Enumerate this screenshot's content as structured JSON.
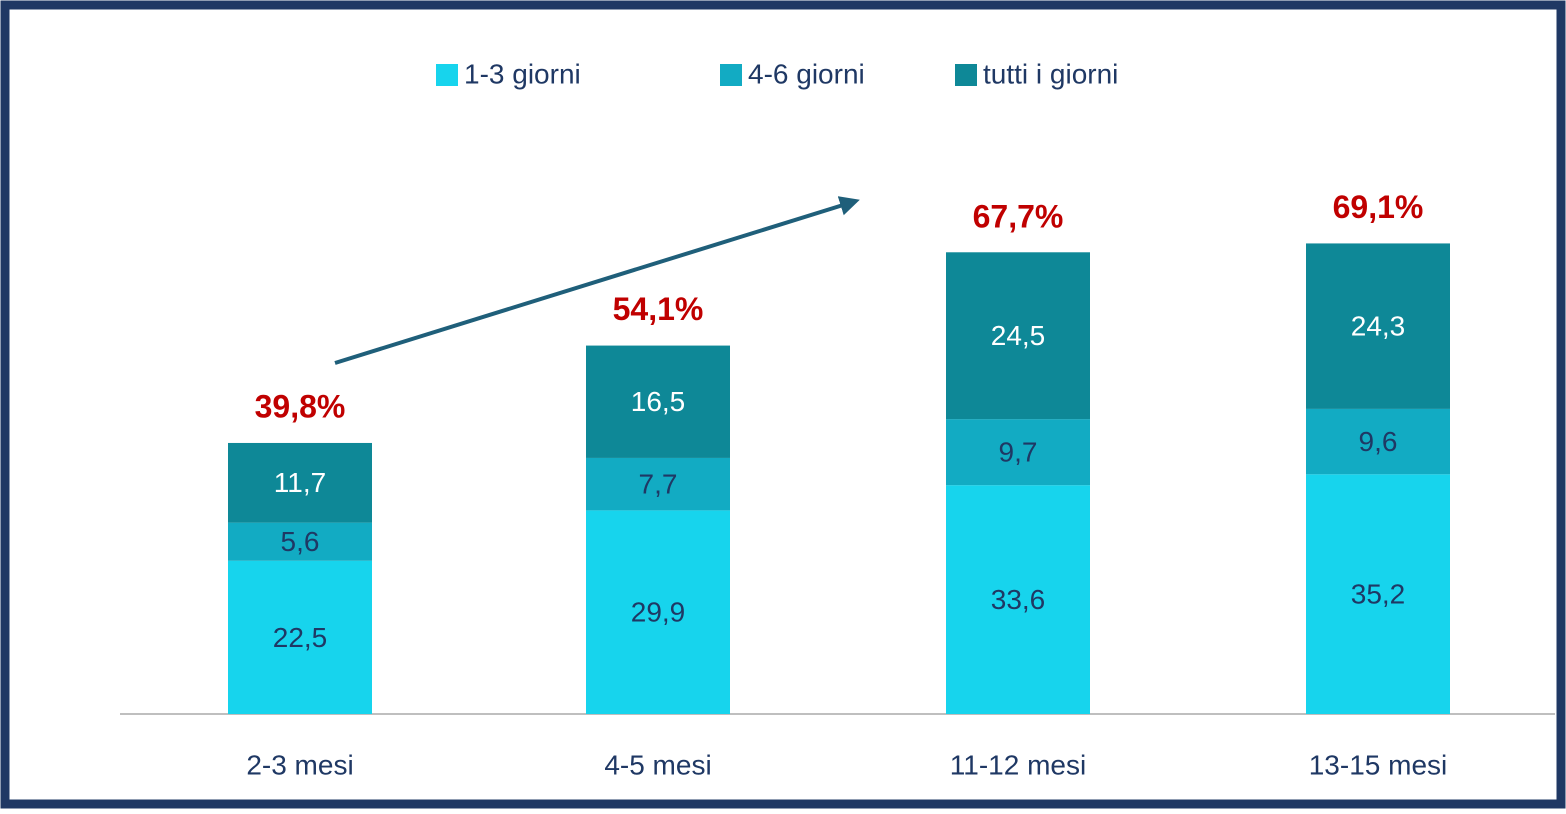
{
  "chart_data": {
    "type": "stacked_bar",
    "categories": [
      "2-3 mesi",
      "4-5 mesi",
      "11-12 mesi",
      "13-15 mesi"
    ],
    "series": [
      {
        "name": "1-3 giorni",
        "color": "#17d4ed",
        "label_color": "#1f3864",
        "values": [
          22.5,
          29.9,
          33.6,
          35.2
        ],
        "value_labels": [
          "22,5",
          "29,9",
          "33,6",
          "35,2"
        ]
      },
      {
        "name": "4-6 giorni",
        "color": "#12abc3",
        "label_color": "#1f3864",
        "values": [
          5.6,
          7.7,
          9.7,
          9.6
        ],
        "value_labels": [
          "5,6",
          "7,7",
          "9,7",
          "9,6"
        ]
      },
      {
        "name": "tutti i giorni",
        "color": "#0e8897",
        "label_color": "#ffffff",
        "values": [
          11.7,
          16.5,
          24.5,
          24.3
        ],
        "value_labels": [
          "11,7",
          "16,5",
          "24,5",
          "24,3"
        ]
      }
    ],
    "totals": [
      39.8,
      54.1,
      67.7,
      69.1
    ],
    "total_labels": [
      "39,8%",
      "54,1%",
      "67,7%",
      "69,1%"
    ],
    "legend": "top"
  }
}
